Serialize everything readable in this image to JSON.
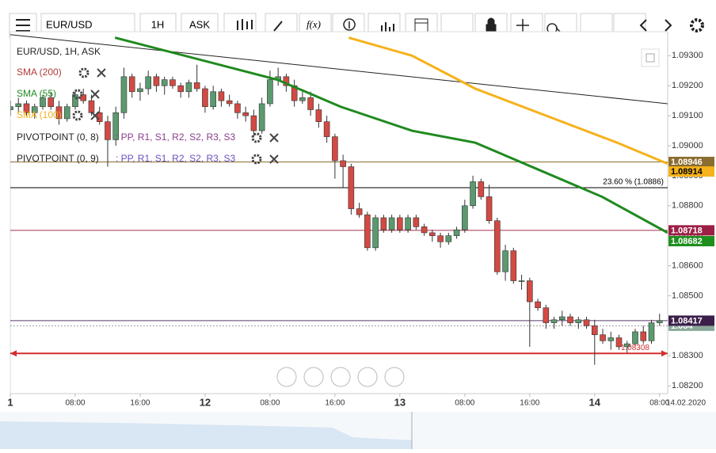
{
  "toolbar": {
    "symbol": "EUR/USD",
    "interval": "1H",
    "side": "ASK",
    "fx": "f(x)"
  },
  "chart_data": {
    "type": "candlestick",
    "title": "EUR/USD, 1H, ASK",
    "x": [
      0,
      1,
      2,
      3,
      4,
      5,
      6,
      7,
      8,
      9,
      10,
      11,
      12,
      13,
      14,
      15,
      16,
      17,
      18,
      19,
      20,
      21,
      22,
      23,
      24,
      25,
      26,
      27,
      28,
      29,
      30,
      31,
      32,
      33,
      34,
      35,
      36,
      37,
      38,
      39,
      40,
      41,
      42,
      43,
      44,
      45,
      46,
      47,
      48,
      49,
      50,
      51,
      52,
      53,
      54,
      55,
      56,
      57,
      58,
      59,
      60,
      61,
      62,
      63,
      64,
      65,
      66,
      67,
      68,
      69,
      70,
      71,
      72,
      73,
      74,
      75,
      76,
      77,
      78,
      79,
      80
    ],
    "open": [
      1.0912,
      1.0913,
      1.0914,
      1.0911,
      1.0913,
      1.0916,
      1.0913,
      1.0909,
      1.0913,
      1.0917,
      1.0915,
      1.0911,
      1.0908,
      1.0902,
      1.0911,
      1.0923,
      1.0918,
      1.0919,
      1.0923,
      1.092,
      1.0922,
      1.092,
      1.0918,
      1.0921,
      1.0919,
      1.0913,
      1.0918,
      1.0915,
      1.0914,
      1.0911,
      1.091,
      1.0905,
      1.0914,
      1.0922,
      1.0923,
      1.092,
      1.0915,
      1.0916,
      1.0912,
      1.0908,
      1.0903,
      1.0895,
      1.0893,
      1.0879,
      1.0877,
      1.0866,
      1.0876,
      1.0872,
      1.0876,
      1.0872,
      1.0876,
      1.0873,
      1.0871,
      1.087,
      1.0868,
      1.087,
      1.0872,
      1.088,
      1.0888,
      1.0883,
      1.0875,
      1.0858,
      1.0865,
      1.0855,
      1.0855,
      1.0848,
      1.0846,
      1.0841,
      1.0842,
      1.0843,
      1.0841,
      1.0842,
      1.084,
      1.0837,
      1.0835,
      1.0836,
      1.0833,
      1.0834,
      1.0838,
      1.0835,
      1.0841
    ],
    "high": [
      1.0915,
      1.0916,
      1.0915,
      1.0914,
      1.0917,
      1.0918,
      1.0915,
      1.0914,
      1.0918,
      1.0919,
      1.0917,
      1.0913,
      1.091,
      1.0913,
      1.0926,
      1.0924,
      1.0921,
      1.0925,
      1.0924,
      1.0923,
      1.0923,
      1.0921,
      1.0922,
      1.0927,
      1.092,
      1.092,
      1.0919,
      1.0917,
      1.0915,
      1.0913,
      1.0912,
      1.0916,
      1.0925,
      1.0926,
      1.0924,
      1.0922,
      1.0918,
      1.0918,
      1.0914,
      1.091,
      1.0904,
      1.0897,
      1.0894,
      1.0881,
      1.0878,
      1.0877,
      1.0877,
      1.0877,
      1.0877,
      1.0877,
      1.0877,
      1.0874,
      1.0872,
      1.0871,
      1.0871,
      1.0873,
      1.0882,
      1.089,
      1.0889,
      1.0887,
      1.0876,
      1.0867,
      1.0866,
      1.0857,
      1.0856,
      1.0849,
      1.0847,
      1.0843,
      1.0845,
      1.0844,
      1.0843,
      1.0843,
      1.0842,
      1.0839,
      1.0838,
      1.0837,
      1.0835,
      1.0839,
      1.084,
      1.0842,
      1.0844
    ],
    "low": [
      1.091,
      1.0911,
      1.091,
      1.0909,
      1.0912,
      1.0912,
      1.0907,
      1.0908,
      1.0912,
      1.0914,
      1.091,
      1.0907,
      1.0893,
      1.09,
      1.0909,
      1.0916,
      1.0915,
      1.0917,
      1.0918,
      1.0917,
      1.0919,
      1.0916,
      1.0916,
      1.0918,
      1.0911,
      1.0912,
      1.0913,
      1.0913,
      1.0909,
      1.0908,
      1.0903,
      1.0904,
      1.0913,
      1.092,
      1.0918,
      1.0913,
      1.0914,
      1.091,
      1.0906,
      1.0901,
      1.0889,
      1.0886,
      1.0877,
      1.0876,
      1.0865,
      1.0865,
      1.0871,
      1.0871,
      1.0871,
      1.0871,
      1.0872,
      1.087,
      1.0868,
      1.0866,
      1.0867,
      1.0869,
      1.0871,
      1.0879,
      1.0882,
      1.0874,
      1.0857,
      1.0855,
      1.0854,
      1.0852,
      1.0833,
      1.0845,
      1.0839,
      1.0839,
      1.084,
      1.084,
      1.0839,
      1.0839,
      1.0827,
      1.0834,
      1.0832,
      1.0832,
      1.0831,
      1.0833,
      1.0834,
      1.0834,
      1.084
    ],
    "close": [
      1.0913,
      1.0914,
      1.0911,
      1.0913,
      1.0916,
      1.0913,
      1.0909,
      1.0913,
      1.0917,
      1.0915,
      1.0911,
      1.0908,
      1.0902,
      1.0911,
      1.0923,
      1.0918,
      1.0919,
      1.0923,
      1.092,
      1.0922,
      1.092,
      1.0918,
      1.0921,
      1.0919,
      1.0913,
      1.0918,
      1.0915,
      1.0914,
      1.0911,
      1.091,
      1.0905,
      1.0914,
      1.0922,
      1.0923,
      1.092,
      1.0915,
      1.0916,
      1.0912,
      1.0908,
      1.0903,
      1.0895,
      1.0893,
      1.0879,
      1.0877,
      1.0866,
      1.0876,
      1.0872,
      1.0876,
      1.0872,
      1.0876,
      1.0873,
      1.0871,
      1.087,
      1.0868,
      1.087,
      1.0872,
      1.088,
      1.0888,
      1.0883,
      1.0875,
      1.0858,
      1.0865,
      1.0855,
      1.0855,
      1.0848,
      1.0846,
      1.0841,
      1.0842,
      1.0843,
      1.0841,
      1.0842,
      1.084,
      1.0837,
      1.0835,
      1.0836,
      1.0833,
      1.0834,
      1.0838,
      1.0835,
      1.0841,
      1.08417
    ],
    "up_color": "#5b9a6f",
    "down_color": "#d24a43",
    "xlim": [
      0,
      81
    ],
    "xticks": [
      {
        "value": 0,
        "label": "1"
      },
      {
        "value": 8,
        "label": "08:00"
      },
      {
        "value": 16,
        "label": "16:00"
      },
      {
        "value": 24,
        "label": "12"
      },
      {
        "value": 32,
        "label": "08:00"
      },
      {
        "value": 40,
        "label": "16:00"
      },
      {
        "value": 48,
        "label": "13"
      },
      {
        "value": 56,
        "label": "08:00"
      },
      {
        "value": 64,
        "label": "16:00"
      },
      {
        "value": 72,
        "label": "14"
      },
      {
        "value": 80,
        "label": "08:00"
      }
    ],
    "date_label": "14.02.2020",
    "ylim": [
      1.08174,
      1.0938
    ],
    "yticks": [
      {
        "value": 1.082,
        "label": "1.08200"
      },
      {
        "value": 1.083,
        "label": "1.08300"
      },
      {
        "value": 1.084,
        "label": "1.08400"
      },
      {
        "value": 1.085,
        "label": "1.08500"
      },
      {
        "value": 1.086,
        "label": "1.08600"
      },
      {
        "value": 1.087,
        "label": "1.08700"
      },
      {
        "value": 1.088,
        "label": "1.08800"
      },
      {
        "value": 1.089,
        "label": "1.08900"
      },
      {
        "value": 1.09,
        "label": "1.09000"
      },
      {
        "value": 1.091,
        "label": "1.09100"
      },
      {
        "value": 1.092,
        "label": "1.09200"
      },
      {
        "value": 1.093,
        "label": "1.09300"
      }
    ],
    "indicators": [
      {
        "name": "SMA (200)",
        "color": "#b03a3a"
      },
      {
        "name": "SMA (55)",
        "color": "#1f8a1f",
        "x": [
          12.9,
          32.9,
          40.7,
          49.5,
          57.3,
          65.1,
          72.9,
          81
        ],
        "values": [
          1.0936,
          1.0922,
          1.0913,
          1.0905,
          1.0901,
          1.0892,
          1.0883,
          1.0871
        ]
      },
      {
        "name": "SMA (100)",
        "color": "#f5b21b",
        "x": [
          41.7,
          49.5,
          57.3,
          67,
          74.8,
          81
        ],
        "values": [
          1.0936,
          1.093,
          1.0919,
          1.0909,
          1.0901,
          1.0894
        ]
      }
    ],
    "pivots": [
      {
        "name": "PIVOTPOINT (0, 8)",
        "levels": ": PP, R1, S1, R2, S2, R3, S3",
        "color": "#8a3d8a"
      },
      {
        "name": "PIVOTPOINT (0, 9)",
        "levels": ": PP, R1, S1, R2, S2, R3, S3",
        "color": "#6a4fc0"
      }
    ],
    "trendline": {
      "x": [
        0,
        81
      ],
      "values": [
        1.0937,
        1.0914
      ],
      "color": "#222222"
    },
    "levels": [
      {
        "value": 1.08946,
        "color": "#8a6d2f"
      },
      {
        "value": 1.0886,
        "color": "#000000",
        "label": "23.60 % (1.0886)"
      },
      {
        "value": 1.08718,
        "color": "#a0304a"
      },
      {
        "value": 1.08417,
        "color": "#5a3a6a"
      },
      {
        "value": 1.08308,
        "color": "#d32f2f",
        "label": "1.08308"
      }
    ],
    "price_tags": [
      {
        "value": 1.084,
        "color": "#8aa89a"
      },
      {
        "value": 1.08946,
        "color": "#8a6d2f"
      },
      {
        "value": 1.08914,
        "color": "#f5b21b"
      },
      {
        "value": 1.08718,
        "color": "#9c1f45"
      },
      {
        "value": 1.08682,
        "color": "#1e8f1e"
      },
      {
        "value": 1.08417,
        "color": "#3b1f4a"
      }
    ]
  }
}
